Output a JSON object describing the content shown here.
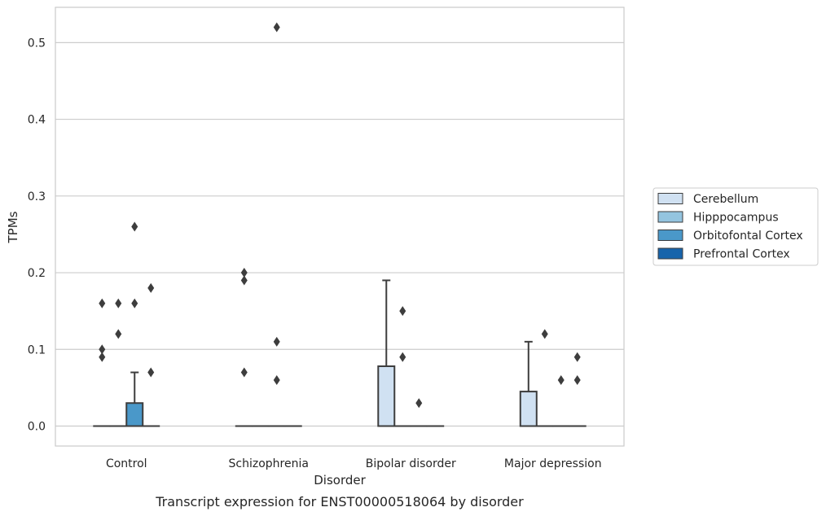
{
  "chart_data": {
    "type": "box",
    "caption": "Transcript expression for ENST00000518064 by disorder",
    "xlabel": "Disorder",
    "ylabel": "TPMs",
    "ylim": [
      -0.026,
      0.546
    ],
    "yticks": [
      "0.0",
      "0.1",
      "0.2",
      "0.3",
      "0.4",
      "0.5"
    ],
    "ytick_values": [
      0,
      0.1,
      0.2,
      0.3,
      0.4,
      0.5
    ],
    "grid": true,
    "legend_placement": "center-right",
    "categories": [
      "Control",
      "Schizophrenia",
      "Bipolar disorder",
      "Major depression"
    ],
    "series": [
      {
        "name": "Cerebellum",
        "color": "#d0e1f2",
        "boxes": [
          {
            "q1": 0,
            "median": 0,
            "q3": 0,
            "whislo": 0,
            "whishi": 0,
            "fliers": [
              0.16,
              0.1,
              0.09
            ]
          },
          {
            "q1": 0,
            "median": 0,
            "q3": 0,
            "whislo": 0,
            "whishi": 0,
            "fliers": [
              0.2,
              0.19,
              0.07
            ]
          },
          {
            "q1": 0,
            "median": 0,
            "q3": 0.078,
            "whislo": 0,
            "whishi": 0.19,
            "fliers": []
          },
          {
            "q1": 0,
            "median": 0,
            "q3": 0.045,
            "whislo": 0,
            "whishi": 0.11,
            "fliers": []
          }
        ]
      },
      {
        "name": "Hipppocampus",
        "color": "#94c4df",
        "boxes": [
          {
            "q1": 0,
            "median": 0,
            "q3": 0,
            "whislo": 0,
            "whishi": 0,
            "fliers": [
              0.16,
              0.12
            ]
          },
          {
            "q1": 0,
            "median": 0,
            "q3": 0,
            "whislo": 0,
            "whishi": 0,
            "fliers": []
          },
          {
            "q1": 0,
            "median": 0,
            "q3": 0,
            "whislo": 0,
            "whishi": 0,
            "fliers": [
              0.15,
              0.09
            ]
          },
          {
            "q1": 0,
            "median": 0,
            "q3": 0,
            "whislo": 0,
            "whishi": 0,
            "fliers": [
              0.12
            ]
          }
        ]
      },
      {
        "name": "Orbitofontal Cortex",
        "color": "#4a98c9",
        "boxes": [
          {
            "q1": 0,
            "median": 0,
            "q3": 0.03,
            "whislo": 0,
            "whishi": 0.07,
            "fliers": [
              0.26,
              0.16
            ]
          },
          {
            "q1": 0,
            "median": 0,
            "q3": 0,
            "whislo": 0,
            "whishi": 0,
            "fliers": [
              0.52,
              0.11,
              0.06
            ]
          },
          {
            "q1": 0,
            "median": 0,
            "q3": 0,
            "whislo": 0,
            "whishi": 0,
            "fliers": [
              0.03
            ]
          },
          {
            "q1": 0,
            "median": 0,
            "q3": 0,
            "whislo": 0,
            "whishi": 0,
            "fliers": [
              0.06
            ]
          }
        ]
      },
      {
        "name": "Prefrontal Cortex",
        "color": "#1764ab",
        "boxes": [
          {
            "q1": 0,
            "median": 0,
            "q3": 0,
            "whislo": 0,
            "whishi": 0,
            "fliers": [
              0.18,
              0.07
            ]
          },
          {
            "q1": 0,
            "median": 0,
            "q3": 0,
            "whislo": 0,
            "whishi": 0,
            "fliers": []
          },
          {
            "q1": 0,
            "median": 0,
            "q3": 0,
            "whislo": 0,
            "whishi": 0,
            "fliers": []
          },
          {
            "q1": 0,
            "median": 0,
            "q3": 0,
            "whislo": 0,
            "whishi": 0,
            "fliers": [
              0.09,
              0.06
            ]
          }
        ]
      }
    ]
  }
}
